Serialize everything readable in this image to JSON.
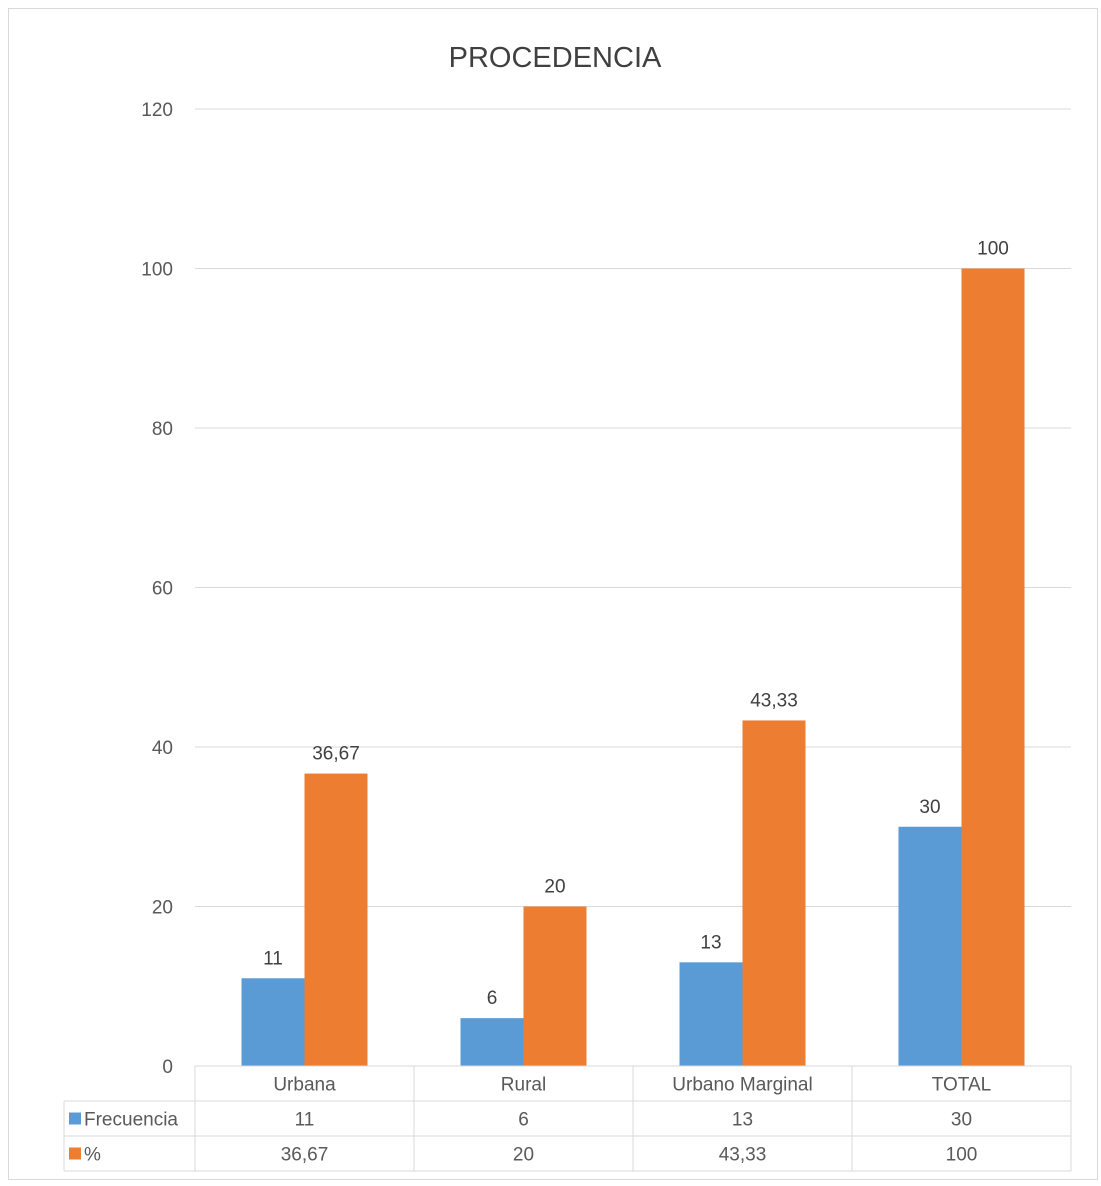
{
  "chart_data": {
    "type": "bar",
    "title": "PROCEDENCIA",
    "categories": [
      "Urbana",
      "Rural",
      "Urbano Marginal",
      "TOTAL"
    ],
    "series": [
      {
        "name": "Frecuencia",
        "values": [
          11,
          6,
          13,
          30
        ],
        "labels": [
          "11",
          "6",
          "13",
          "30"
        ],
        "color": "#5B9BD5"
      },
      {
        "name": "%",
        "values": [
          36.67,
          20,
          43.33,
          100
        ],
        "labels": [
          "36,67",
          "20",
          "43,33",
          "100"
        ],
        "color": "#ED7D31"
      }
    ],
    "ylim": [
      0,
      120
    ],
    "yticks": [
      0,
      20,
      40,
      60,
      80,
      100,
      120
    ],
    "grid": true,
    "legend": "data table below plot",
    "data_table": true
  }
}
